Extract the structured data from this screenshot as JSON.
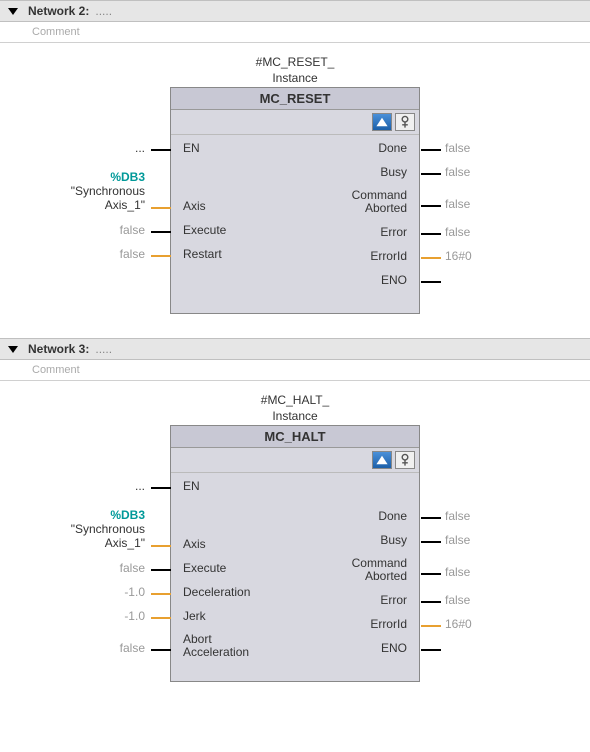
{
  "networks": [
    {
      "id": "net2",
      "title": "Network 2:",
      "comment": "Comment",
      "instance": "#MC_RESET_",
      "instance_sub": "Instance",
      "fb_name": "MC_RESET",
      "inputs": [
        {
          "name": "EN",
          "ext": "...",
          "ext_color": "#333",
          "wire": "#000"
        },
        {
          "name": "Axis",
          "ext_lines": [
            "%DB3",
            "\"Synchronous",
            "Axis_1\""
          ],
          "ext_colors": [
            "teal",
            "#333",
            "#333"
          ],
          "wire": "#e8a030"
        },
        {
          "name": "Execute",
          "ext": "false",
          "ext_color": "#999",
          "wire": "#000"
        },
        {
          "name": "Restart",
          "ext": "false",
          "ext_color": "#999",
          "wire": "#e8a030"
        }
      ],
      "outputs": [
        {
          "name": "Done",
          "ext": "false",
          "ext_color": "#999",
          "wire": "#000"
        },
        {
          "name": "Busy",
          "ext": "false",
          "ext_color": "#999",
          "wire": "#000"
        },
        {
          "name": "Command\nAborted",
          "ext": "false",
          "ext_color": "#999",
          "wire": "#000"
        },
        {
          "name": "Error",
          "ext": "false",
          "ext_color": "#999",
          "wire": "#000"
        },
        {
          "name": "ErrorId",
          "ext": "16#0",
          "ext_color": "#999",
          "wire": "#e8a030"
        },
        {
          "name": "ENO",
          "ext": "",
          "ext_color": "",
          "wire": "#000"
        }
      ]
    },
    {
      "id": "net3",
      "title": "Network 3:",
      "comment": "Comment",
      "instance": "#MC_HALT_",
      "instance_sub": "Instance",
      "fb_name": "MC_HALT",
      "inputs": [
        {
          "name": "EN",
          "ext": "...",
          "ext_color": "#333",
          "wire": "#000"
        },
        {
          "name": "Axis",
          "ext_lines": [
            "%DB3",
            "\"Synchronous",
            "Axis_1\""
          ],
          "ext_colors": [
            "teal",
            "#333",
            "#333"
          ],
          "wire": "#e8a030"
        },
        {
          "name": "Execute",
          "ext": "false",
          "ext_color": "#999",
          "wire": "#000"
        },
        {
          "name": "Deceleration",
          "ext": "-1.0",
          "ext_color": "#999",
          "wire": "#e8a030"
        },
        {
          "name": "Jerk",
          "ext": "-1.0",
          "ext_color": "#999",
          "wire": "#e8a030"
        },
        {
          "name": "Abort\nAcceleration",
          "ext": "false",
          "ext_color": "#999",
          "wire": "#000"
        }
      ],
      "outputs": [
        {
          "name": "Done",
          "ext": "false",
          "ext_color": "#999",
          "wire": "#000"
        },
        {
          "name": "Busy",
          "ext": "false",
          "ext_color": "#999",
          "wire": "#000"
        },
        {
          "name": "Command\nAborted",
          "ext": "false",
          "ext_color": "#999",
          "wire": "#000"
        },
        {
          "name": "Error",
          "ext": "false",
          "ext_color": "#999",
          "wire": "#000"
        },
        {
          "name": "ErrorId",
          "ext": "16#0",
          "ext_color": "#999",
          "wire": "#e8a030"
        },
        {
          "name": "ENO",
          "ext": "",
          "ext_color": "",
          "wire": "#000"
        }
      ]
    }
  ],
  "colors": {
    "block_bg": "#d8d8e0",
    "header_bg": "#e6e6e6"
  }
}
